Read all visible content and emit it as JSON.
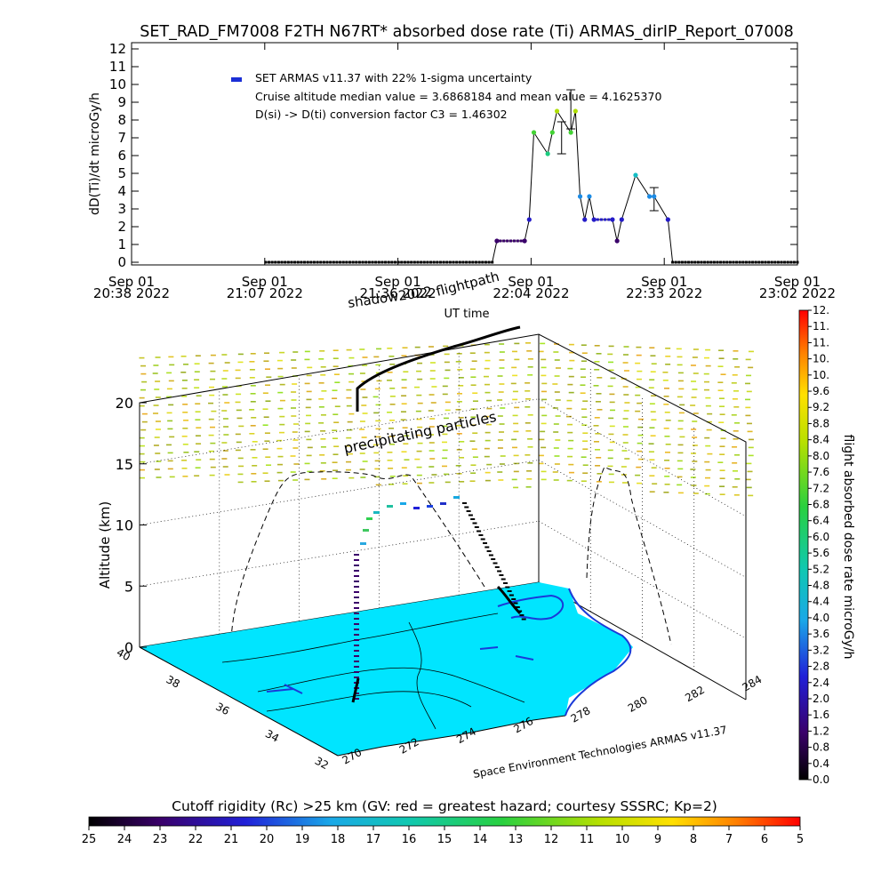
{
  "title": "SET_RAD_FM7008  F2TH N67RT* absorbed dose rate (Ti) ARMAS_dirIP_Report_07008",
  "chart_data": [
    {
      "type": "line",
      "ylabel": "dD(Ti)/dt microGy/h",
      "xlabel": "UT time",
      "ylim": [
        0,
        12
      ],
      "y_ticks": [
        "0",
        "1",
        "2",
        "3",
        "4",
        "5",
        "6",
        "7",
        "8",
        "9",
        "10",
        "11",
        "12"
      ],
      "x_ticks": [
        {
          "date": "Sep 01",
          "time": "20:38 2022"
        },
        {
          "date": "Sep 01",
          "time": "21:07 2022"
        },
        {
          "date": "Sep 01",
          "time": "21:36 2022"
        },
        {
          "date": "Sep 01",
          "time": "22:04 2022"
        },
        {
          "date": "Sep 01",
          "time": "22:33 2022"
        },
        {
          "date": "Sep 01",
          "time": "23:02 2022"
        }
      ],
      "x_range_minutes_utc": [
        1238,
        1382
      ],
      "legend": {
        "series_label": "SET ARMAS v11.37 with 22% 1-sigma uncertainty",
        "median_line": "Cruise altitude median value = 3.6868184 and mean value = 4.1625370",
        "conversion_line": "D(si) -> D(ti) conversion factor C3 = 1.46302"
      },
      "series": [
        {
          "name": "SET ARMAS v11.37 with 22% 1-sigma uncertainty",
          "x_utc": [
            "21:07",
            "21:56",
            "21:57",
            "22:03",
            "22:04",
            "22:05",
            "22:08",
            "22:09",
            "22:10",
            "22:13",
            "22:14",
            "22:15",
            "22:16",
            "22:17",
            "22:18",
            "22:22",
            "22:23",
            "22:24",
            "22:27",
            "22:30",
            "22:31",
            "22:34",
            "22:35",
            "23:02"
          ],
          "values": [
            0,
            0,
            1.2,
            1.2,
            2.4,
            7.3,
            6.1,
            7.3,
            8.5,
            7.3,
            8.5,
            3.7,
            2.4,
            3.7,
            2.4,
            2.4,
            1.2,
            2.4,
            4.9,
            3.7,
            3.7,
            2.4,
            0,
            0
          ]
        }
      ],
      "error_bars": [
        {
          "x_utc": "22:11",
          "low": 6.1,
          "high": 7.9
        },
        {
          "x_utc": "22:13",
          "low": 7.5,
          "high": 9.7
        },
        {
          "x_utc": "22:31",
          "low": 2.9,
          "high": 4.2
        }
      ]
    },
    {
      "type": "scatter",
      "zlabel": "Altitude (km)",
      "z_ticks": [
        "0",
        "5",
        "10",
        "15",
        "20"
      ],
      "lat_ticks": [
        "32",
        "34",
        "36",
        "38",
        "40"
      ],
      "lon_ticks": [
        "270",
        "272",
        "274",
        "276",
        "278",
        "280",
        "282",
        "284"
      ],
      "annotations": {
        "flightpath_shadow": "shadow2022",
        "flightpath_label": "flightpath",
        "particles": "precipitating particles",
        "credit": "Space Environment Technologies ARMAS v11.37",
        "ut_time_label": "UT time"
      },
      "colorbar_right": {
        "label": "flight absorbed dose rate microGy/h",
        "ticks": [
          "0.0",
          "0.4",
          "0.8",
          "1.2",
          "1.6",
          "2.0",
          "2.4",
          "2.8",
          "3.2",
          "3.6",
          "4.0",
          "4.4",
          "4.8",
          "5.2",
          "5.6",
          "6.0",
          "6.4",
          "6.8",
          "7.2",
          "7.6",
          "8.0",
          "8.4",
          "8.8",
          "9.2",
          "9.6",
          "10.",
          "10.",
          "11.",
          "11.",
          "12."
        ]
      },
      "colorbar_bottom": {
        "label": "Cutoff rigidity (Rc) >25 km (GV: red = greatest hazard; courtesy SSSRC; Kp=2)",
        "ticks": [
          "25",
          "24",
          "23",
          "22",
          "21",
          "20",
          "19",
          "18",
          "17",
          "16",
          "15",
          "14",
          "13",
          "12",
          "11",
          "10",
          "9",
          "8",
          "7",
          "6",
          "5"
        ]
      }
    }
  ]
}
